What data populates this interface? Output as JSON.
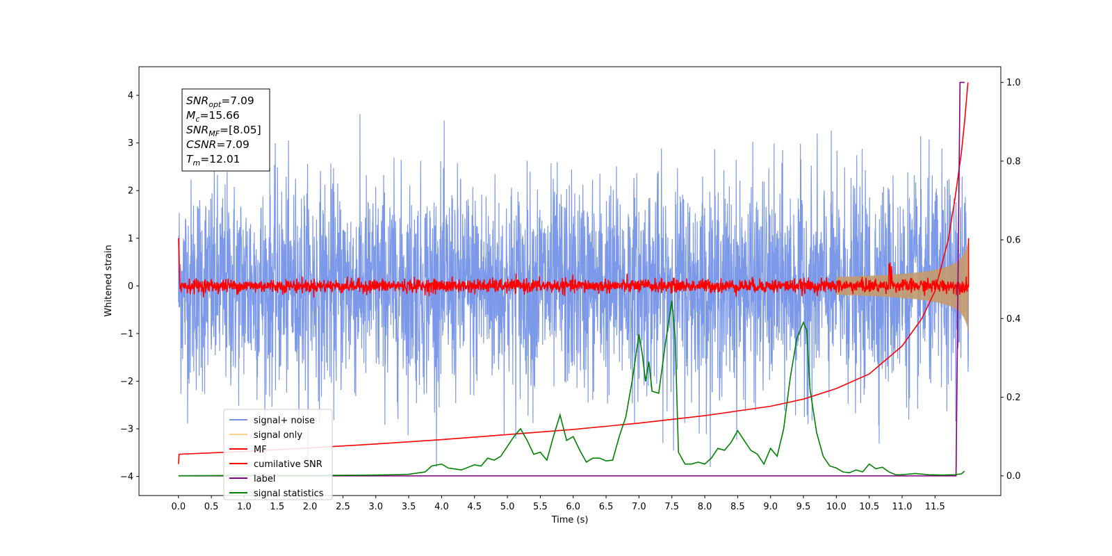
{
  "chart_data": {
    "type": "line",
    "xlabel": "Time (s)",
    "ylabel_left": "Whitened strain",
    "ylabel_right": "",
    "xlim": [
      -0.6,
      12.5
    ],
    "ylim_left": [
      -4.4,
      4.6
    ],
    "ylim_right": [
      -0.05,
      1.04
    ],
    "x_ticks": [
      "0.0",
      "0.5",
      "1.0",
      "1.5",
      "2.0",
      "2.5",
      "3.0",
      "3.5",
      "4.0",
      "4.5",
      "5.0",
      "5.5",
      "6.0",
      "6.5",
      "7.0",
      "7.5",
      "8.0",
      "8.5",
      "9.0",
      "9.5",
      "10.0",
      "10.5",
      "11.0",
      "11.5"
    ],
    "y_ticks_left": [
      "4",
      "3",
      "2",
      "1",
      "0",
      "−1",
      "−2",
      "−3",
      "−4"
    ],
    "y_ticks_right": [
      "1.0",
      "0.8",
      "0.6",
      "0.4",
      "0.2",
      "0.0"
    ],
    "grid": false,
    "legend": {
      "placement": "lower-left",
      "entries": [
        {
          "label": "signal+ noise",
          "color": "#7592e8"
        },
        {
          "label": "signal only",
          "color": "#f7d08a"
        },
        {
          "label": "MF",
          "color": "#ff0000"
        },
        {
          "label": "cumilative SNR",
          "color": "#ff0000"
        },
        {
          "label": "label",
          "color": "#800080"
        },
        {
          "label": "signal statistics",
          "color": "#008000"
        }
      ]
    },
    "info_box": {
      "lines": [
        {
          "base": "SNR",
          "sub": "opt",
          "value": "=7.09"
        },
        {
          "base": "M",
          "sub": "c",
          "value": "=15.66"
        },
        {
          "base": "SNR",
          "sub": "MF",
          "value": "=[8.05]"
        },
        {
          "base": "CSNR",
          "sub": "",
          "value": "=7.09"
        },
        {
          "base": "T",
          "sub": "m",
          "value": "=12.01"
        }
      ]
    },
    "series": [
      {
        "name": "signal+ noise",
        "axis": "left",
        "color": "#7592e8",
        "x_start": 0.0,
        "x_end": 12.01,
        "amplitude_sigma": 1.0,
        "peak_max": 4.18,
        "peak_min": -3.8
      },
      {
        "name": "signal only",
        "axis": "left",
        "color": "#f7d08a",
        "chirp_start": 10.0,
        "chirp_end": 12.01,
        "max_amplitude": 1.0
      },
      {
        "name": "MF",
        "axis": "left",
        "color": "#ff0000",
        "x": [
          0.0,
          0.02,
          12.01
        ],
        "y": [
          1.0,
          0.05,
          0.05
        ],
        "noise_sigma": 0.08
      },
      {
        "name": "cumilative SNR",
        "axis": "right",
        "color": "#ff0000",
        "x": [
          0.0,
          0.01,
          1.0,
          2.0,
          3.0,
          4.0,
          5.0,
          6.0,
          7.0,
          8.0,
          9.0,
          9.5,
          10.0,
          10.5,
          11.0,
          11.3,
          11.5,
          11.7,
          11.8,
          11.9,
          11.95,
          12.0
        ],
        "y": [
          0.03,
          0.055,
          0.062,
          0.071,
          0.081,
          0.092,
          0.105,
          0.118,
          0.134,
          0.153,
          0.177,
          0.195,
          0.222,
          0.259,
          0.33,
          0.4,
          0.47,
          0.6,
          0.7,
          0.82,
          0.9,
          1.0
        ]
      },
      {
        "name": "label",
        "axis": "right",
        "color": "#800080",
        "x": [
          0.0,
          11.82,
          11.88,
          11.95
        ],
        "y": [
          0.0,
          0.0,
          1.0,
          1.0
        ]
      },
      {
        "name": "signal statistics",
        "axis": "right",
        "color": "#008000",
        "x": [
          0.0,
          1.0,
          2.0,
          3.0,
          3.25,
          3.5,
          3.75,
          3.85,
          4.0,
          4.1,
          4.3,
          4.5,
          4.6,
          4.7,
          4.8,
          4.9,
          5.0,
          5.1,
          5.2,
          5.3,
          5.4,
          5.5,
          5.6,
          5.7,
          5.8,
          5.9,
          6.0,
          6.1,
          6.2,
          6.3,
          6.4,
          6.5,
          6.6,
          6.7,
          6.8,
          6.9,
          7.0,
          7.05,
          7.1,
          7.15,
          7.2,
          7.3,
          7.4,
          7.5,
          7.55,
          7.6,
          7.7,
          7.8,
          7.9,
          8.0,
          8.1,
          8.2,
          8.3,
          8.4,
          8.5,
          8.6,
          8.7,
          8.8,
          8.9,
          9.0,
          9.1,
          9.2,
          9.3,
          9.4,
          9.5,
          9.55,
          9.6,
          9.7,
          9.8,
          9.9,
          10.0,
          10.1,
          10.2,
          10.3,
          10.4,
          10.5,
          10.6,
          10.7,
          10.8,
          10.9,
          11.0,
          11.2,
          11.4,
          11.6,
          11.8,
          11.9,
          11.95
        ],
        "y": [
          0.0,
          0.001,
          0.001,
          0.002,
          0.003,
          0.004,
          0.01,
          0.025,
          0.03,
          0.02,
          0.015,
          0.028,
          0.025,
          0.045,
          0.04,
          0.05,
          0.075,
          0.1,
          0.12,
          0.09,
          0.055,
          0.06,
          0.04,
          0.1,
          0.155,
          0.09,
          0.1,
          0.065,
          0.035,
          0.045,
          0.045,
          0.038,
          0.04,
          0.1,
          0.15,
          0.245,
          0.36,
          0.31,
          0.24,
          0.29,
          0.215,
          0.21,
          0.335,
          0.445,
          0.35,
          0.06,
          0.03,
          0.03,
          0.035,
          0.03,
          0.045,
          0.07,
          0.065,
          0.085,
          0.115,
          0.09,
          0.065,
          0.055,
          0.03,
          0.07,
          0.05,
          0.12,
          0.25,
          0.35,
          0.39,
          0.37,
          0.22,
          0.11,
          0.05,
          0.025,
          0.02,
          0.01,
          0.008,
          0.015,
          0.01,
          0.03,
          0.018,
          0.022,
          0.01,
          0.003,
          0.003,
          0.006,
          0.003,
          0.002,
          0.003,
          0.005,
          0.012
        ]
      }
    ]
  }
}
